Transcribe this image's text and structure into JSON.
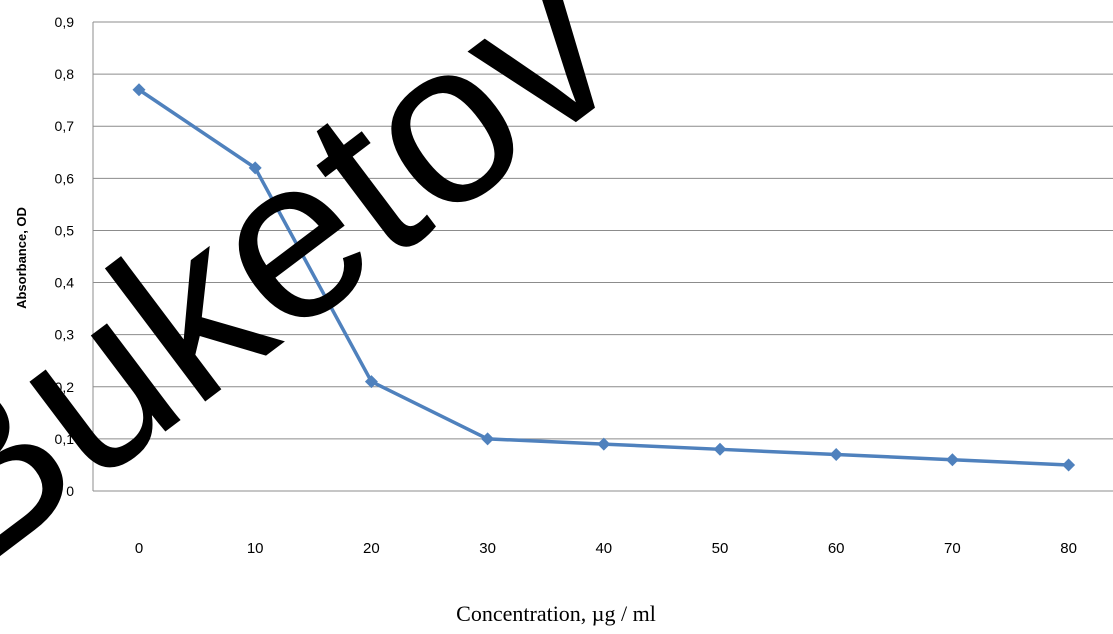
{
  "chart_data": {
    "type": "line",
    "title": "",
    "xlabel": "Concentration, µg / ml",
    "ylabel": "Absorbance, OD",
    "categories": [
      "0",
      "10",
      "20",
      "30",
      "40",
      "50",
      "60",
      "70",
      "80"
    ],
    "series": [
      {
        "values": [
          0.77,
          0.62,
          0.21,
          0.1,
          0.09,
          0.08,
          0.07,
          0.06,
          0.05
        ],
        "color": "#4F81BD",
        "marker": "diamond"
      }
    ],
    "y_ticks": [
      "0",
      "0,1",
      "0,2",
      "0,3",
      "0,4",
      "0,5",
      "0,6",
      "0,7",
      "0,8",
      "0,9"
    ],
    "ylim": [
      0,
      0.9
    ],
    "grid": true,
    "legend": "none",
    "watermark": "Buketov"
  }
}
